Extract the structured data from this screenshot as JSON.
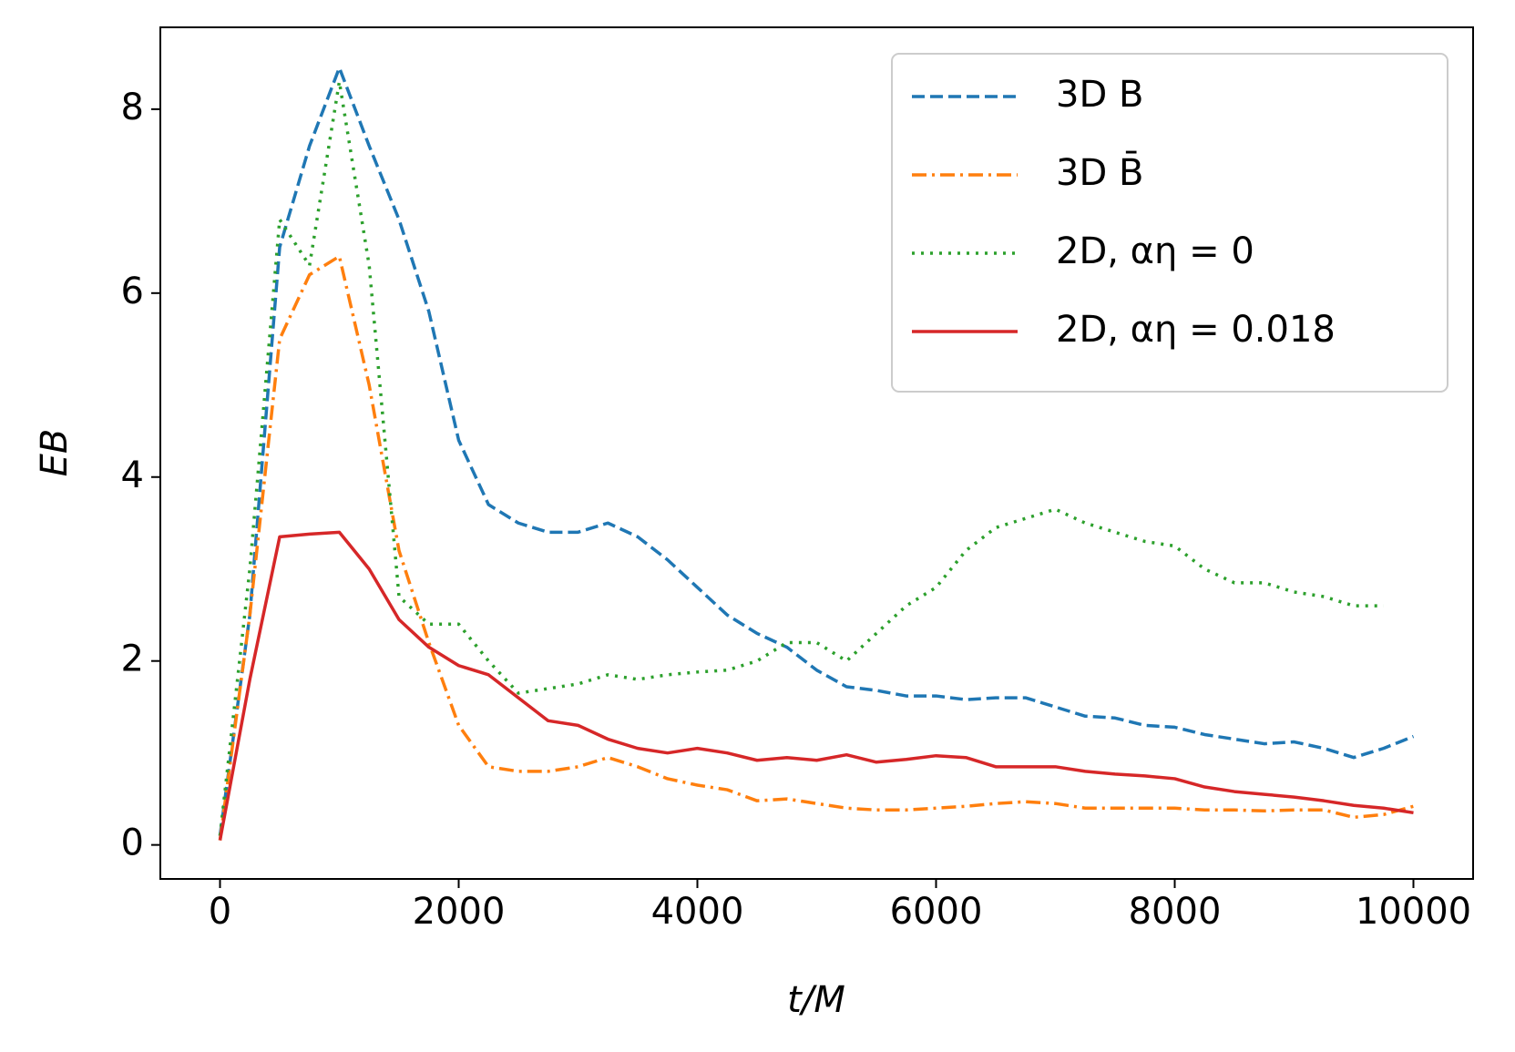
{
  "chart_data": {
    "type": "line",
    "xlabel": "t/M",
    "ylabel": "EB",
    "x": [
      0,
      250,
      500,
      750,
      1000,
      1250,
      1500,
      1750,
      2000,
      2250,
      2500,
      2750,
      3000,
      3250,
      3500,
      3750,
      4000,
      4250,
      4500,
      4750,
      5000,
      5250,
      5500,
      5750,
      6000,
      6250,
      6500,
      6750,
      7000,
      7250,
      7500,
      7750,
      8000,
      8250,
      8500,
      8750,
      9000,
      9250,
      9500,
      9750,
      10000
    ],
    "series": [
      {
        "name": "3D B",
        "color": "#1f77b4",
        "linestyle": "dashed",
        "values": [
          0.1,
          2.5,
          6.5,
          7.6,
          8.45,
          7.6,
          6.8,
          5.8,
          4.4,
          3.7,
          3.5,
          3.4,
          3.4,
          3.5,
          3.35,
          3.1,
          2.8,
          2.5,
          2.3,
          2.15,
          1.9,
          1.72,
          1.68,
          1.62,
          1.62,
          1.58,
          1.6,
          1.6,
          1.5,
          1.4,
          1.38,
          1.3,
          1.28,
          1.2,
          1.15,
          1.1,
          1.12,
          1.05,
          0.95,
          1.05,
          1.18
        ]
      },
      {
        "name": "3D B̄",
        "color": "#ff7f0e",
        "linestyle": "dashdot",
        "values": [
          0.05,
          2.5,
          5.5,
          6.2,
          6.4,
          5.0,
          3.2,
          2.2,
          1.3,
          0.85,
          0.8,
          0.8,
          0.85,
          0.95,
          0.85,
          0.72,
          0.65,
          0.6,
          0.48,
          0.5,
          0.45,
          0.4,
          0.38,
          0.38,
          0.4,
          0.42,
          0.45,
          0.47,
          0.45,
          0.4,
          0.4,
          0.4,
          0.4,
          0.38,
          0.38,
          0.37,
          0.38,
          0.38,
          0.3,
          0.33,
          0.42
        ]
      },
      {
        "name": "2D, αη = 0",
        "color": "#2ca02c",
        "linestyle": "dotted",
        "values": [
          0.1,
          3.0,
          6.8,
          6.3,
          8.3,
          6.3,
          2.7,
          2.4,
          2.4,
          2.0,
          1.65,
          1.7,
          1.75,
          1.85,
          1.8,
          1.85,
          1.88,
          1.9,
          2.0,
          2.2,
          2.2,
          2.0,
          2.3,
          2.6,
          2.8,
          3.2,
          3.45,
          3.55,
          3.65,
          3.5,
          3.4,
          3.3,
          3.25,
          3.0,
          2.85,
          2.85,
          2.75,
          2.7,
          2.6,
          2.6,
          null
        ]
      },
      {
        "name": "2D, αη = 0.018",
        "color": "#d62728",
        "linestyle": "solid",
        "values": [
          0.05,
          1.8,
          3.35,
          3.38,
          3.4,
          3.0,
          2.45,
          2.15,
          1.95,
          1.85,
          1.6,
          1.35,
          1.3,
          1.15,
          1.05,
          1.0,
          1.05,
          1.0,
          0.92,
          0.95,
          0.92,
          0.98,
          0.9,
          0.93,
          0.97,
          0.95,
          0.85,
          0.85,
          0.85,
          0.8,
          0.77,
          0.75,
          0.72,
          0.63,
          0.58,
          0.55,
          0.52,
          0.48,
          0.43,
          0.4,
          0.35
        ]
      }
    ],
    "xlim": [
      -500,
      10500
    ],
    "ylim": [
      -0.37,
      8.89
    ],
    "xticks": [
      0,
      2000,
      4000,
      6000,
      8000,
      10000
    ],
    "yticks": [
      0,
      2,
      4,
      6,
      8
    ],
    "legend": "upper right"
  }
}
